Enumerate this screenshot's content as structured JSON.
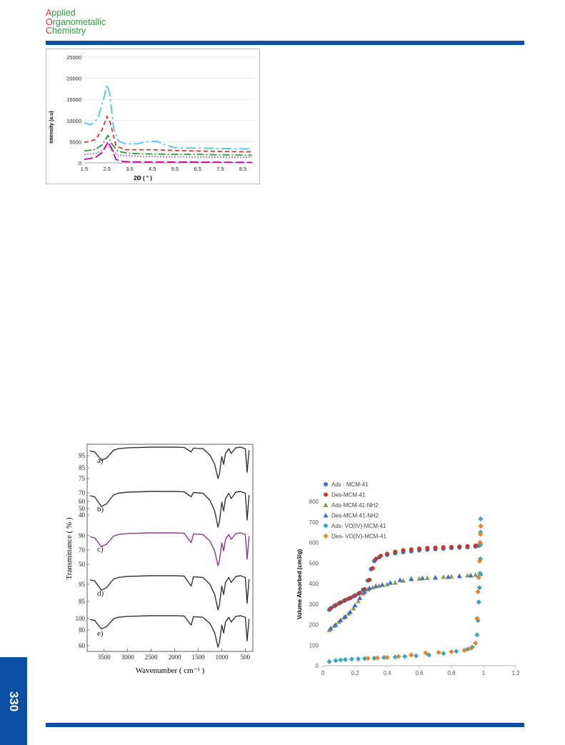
{
  "header": {
    "journal_lines": [
      {
        "initial": "A",
        "rest": "pplied"
      },
      {
        "initial": "O",
        "rest": "rganometallic"
      },
      {
        "initial": "C",
        "rest": "hemistry"
      }
    ]
  },
  "page_number": "330",
  "colors": {
    "brand_blue": "#0b4fa3",
    "journal_red": "#e0342b",
    "journal_green": "#2a9d3c"
  },
  "chart_data": [
    {
      "type": "line",
      "title": "",
      "xlabel": "2Θ ( ° )",
      "ylabel": "Intensity (a.u)",
      "xlim": [
        1.5,
        9
      ],
      "ylim": [
        0,
        25000
      ],
      "x_ticks": [
        "1.5",
        "2.5",
        "3.5",
        "4.5",
        "5.5",
        "6.5",
        "7.5",
        "8.5"
      ],
      "y_ticks": [
        "0",
        "5000",
        "10000",
        "15000",
        "20000",
        "25000"
      ],
      "series": [
        {
          "color": "#4cc8f0",
          "dash": "14,4,3,4",
          "points": [
            [
              1.5,
              9500
            ],
            [
              1.8,
              9000
            ],
            [
              2.1,
              10500
            ],
            [
              2.35,
              15000
            ],
            [
              2.5,
              18500
            ],
            [
              2.62,
              16500
            ],
            [
              2.8,
              8000
            ],
            [
              3.0,
              5200
            ],
            [
              3.3,
              4500
            ],
            [
              3.8,
              4500
            ],
            [
              4.3,
              5000
            ],
            [
              4.7,
              5100
            ],
            [
              5.1,
              4200
            ],
            [
              5.5,
              3600
            ],
            [
              6.5,
              3500
            ],
            [
              7.5,
              3400
            ],
            [
              8.9,
              3300
            ]
          ]
        },
        {
          "color": "#e0322e",
          "dash": "6,4",
          "points": [
            [
              1.5,
              4800
            ],
            [
              2.0,
              5500
            ],
            [
              2.3,
              8000
            ],
            [
              2.5,
              11000
            ],
            [
              2.65,
              9500
            ],
            [
              2.9,
              4000
            ],
            [
              3.3,
              3100
            ],
            [
              4.5,
              3100
            ],
            [
              5.5,
              2900
            ],
            [
              6.5,
              2800
            ],
            [
              7.5,
              2700
            ],
            [
              8.9,
              2600
            ]
          ]
        },
        {
          "color": "#2f9a3a",
          "dash": "10,3,2,3",
          "points": [
            [
              1.5,
              2800
            ],
            [
              2.0,
              3200
            ],
            [
              2.3,
              4300
            ],
            [
              2.55,
              6500
            ],
            [
              2.7,
              4600
            ],
            [
              3.0,
              2700
            ],
            [
              3.5,
              2200
            ],
            [
              4.5,
              2100
            ],
            [
              5.5,
              2000
            ],
            [
              6.5,
              2000
            ],
            [
              7.5,
              1900
            ],
            [
              8.9,
              1800
            ]
          ]
        },
        {
          "color": "#9a7fb8",
          "dash": "2,2",
          "points": [
            [
              1.5,
              2000
            ],
            [
              2.0,
              2200
            ],
            [
              2.3,
              3000
            ],
            [
              2.55,
              4200
            ],
            [
              2.75,
              2800
            ],
            [
              3.0,
              1800
            ],
            [
              4.0,
              1500
            ],
            [
              5.5,
              1400
            ],
            [
              6.5,
              1350
            ],
            [
              8.9,
              1300
            ]
          ]
        },
        {
          "color": "#c400a8",
          "dash": "12,4",
          "points": [
            [
              1.5,
              800
            ],
            [
              2.0,
              1300
            ],
            [
              2.3,
              2500
            ],
            [
              2.55,
              5000
            ],
            [
              2.7,
              3500
            ],
            [
              2.9,
              800
            ],
            [
              3.2,
              300
            ],
            [
              4.0,
              200
            ],
            [
              5.5,
              200
            ],
            [
              7.5,
              150
            ],
            [
              8.9,
              100
            ]
          ]
        }
      ]
    },
    {
      "type": "line",
      "title": "",
      "xlabel": "Wavenumber ( cm⁻¹ )",
      "ylabel": "Transmittance ( % )",
      "x_ticks": [
        "3500",
        "3000",
        "2500",
        "2000",
        "1500",
        "1000",
        "500"
      ],
      "panels": [
        {
          "label": "a)",
          "ticks": [
            "95",
            "85",
            "75"
          ],
          "color": "#333333"
        },
        {
          "label": "b)",
          "ticks": [
            "70",
            "60",
            "50",
            "40"
          ],
          "color": "#333333"
        },
        {
          "label": "c)",
          "ticks": [
            "90",
            "70",
            "50"
          ],
          "color": "#8a3a8a"
        },
        {
          "label": "d)",
          "ticks": [
            "95",
            "85"
          ],
          "color": "#333333"
        },
        {
          "label": "e)",
          "ticks": [
            "100",
            "80",
            "60"
          ],
          "color": "#333333"
        }
      ]
    },
    {
      "type": "scatter",
      "title": "",
      "xlabel": "",
      "ylabel": "Volume Absorbed (cm3/g)",
      "xlim": [
        0,
        1.2
      ],
      "ylim": [
        0,
        800
      ],
      "x_ticks": [
        "0",
        "0.2",
        "0.4",
        "0.6",
        "0.8",
        "1",
        "1.2"
      ],
      "y_ticks": [
        "0",
        "100",
        "200",
        "300",
        "400",
        "500",
        "600",
        "700",
        "800"
      ],
      "legend_position": "top-left",
      "series": [
        {
          "name": "Ads - MCM-41",
          "color": "#3d6fbf",
          "marker": "circle",
          "points": [
            [
              0.04,
              272
            ],
            [
              0.07,
              290
            ],
            [
              0.1,
              303
            ],
            [
              0.13,
              315
            ],
            [
              0.16,
              326
            ],
            [
              0.19,
              337
            ],
            [
              0.22,
              350
            ],
            [
              0.25,
              370
            ],
            [
              0.28,
              415
            ],
            [
              0.3,
              470
            ],
            [
              0.32,
              510
            ],
            [
              0.35,
              528
            ],
            [
              0.4,
              540
            ],
            [
              0.45,
              548
            ],
            [
              0.5,
              553
            ],
            [
              0.55,
              557
            ],
            [
              0.6,
              562
            ],
            [
              0.65,
              565
            ],
            [
              0.7,
              568
            ],
            [
              0.75,
              570
            ],
            [
              0.8,
              573
            ],
            [
              0.85,
              575
            ],
            [
              0.9,
              577
            ],
            [
              0.95,
              580
            ],
            [
              0.97,
              585
            ],
            [
              0.98,
              590
            ]
          ]
        },
        {
          "name": "Des-MCM-41",
          "color": "#c0392b",
          "marker": "circle",
          "points": [
            [
              0.98,
              590
            ],
            [
              0.95,
              585
            ],
            [
              0.9,
              582
            ],
            [
              0.85,
              580
            ],
            [
              0.8,
              578
            ],
            [
              0.75,
              577
            ],
            [
              0.7,
              575
            ],
            [
              0.65,
              573
            ],
            [
              0.6,
              570
            ],
            [
              0.55,
              566
            ],
            [
              0.5,
              562
            ],
            [
              0.45,
              555
            ],
            [
              0.4,
              545
            ],
            [
              0.36,
              535
            ],
            [
              0.33,
              520
            ],
            [
              0.31,
              475
            ],
            [
              0.29,
              418
            ],
            [
              0.26,
              372
            ],
            [
              0.23,
              355
            ],
            [
              0.2,
              342
            ],
            [
              0.17,
              330
            ],
            [
              0.14,
              320
            ],
            [
              0.11,
              308
            ],
            [
              0.08,
              295
            ],
            [
              0.05,
              280
            ]
          ]
        },
        {
          "name": "Ads-MCM-41-NH2",
          "color": "#8f9a55",
          "marker": "triangle",
          "points": [
            [
              0.04,
              175
            ],
            [
              0.07,
              195
            ],
            [
              0.1,
              215
            ],
            [
              0.13,
              235
            ],
            [
              0.16,
              255
            ],
            [
              0.19,
              280
            ],
            [
              0.22,
              315
            ],
            [
              0.25,
              352
            ],
            [
              0.28,
              372
            ],
            [
              0.31,
              382
            ],
            [
              0.35,
              390
            ],
            [
              0.4,
              397
            ],
            [
              0.45,
              405
            ],
            [
              0.5,
              415
            ],
            [
              0.55,
              422
            ],
            [
              0.6,
              425
            ],
            [
              0.65,
              428
            ],
            [
              0.7,
              430
            ],
            [
              0.75,
              433
            ],
            [
              0.8,
              435
            ],
            [
              0.85,
              437
            ],
            [
              0.9,
              440
            ],
            [
              0.95,
              443
            ],
            [
              0.98,
              450
            ]
          ]
        },
        {
          "name": "Des-MCM-41-NH2",
          "color": "#3d6fbf",
          "marker": "triangle",
          "points": [
            [
              0.98,
              448
            ],
            [
              0.92,
              440
            ],
            [
              0.85,
              437
            ],
            [
              0.78,
              433
            ],
            [
              0.7,
              430
            ],
            [
              0.62,
              427
            ],
            [
              0.55,
              424
            ],
            [
              0.48,
              418
            ],
            [
              0.42,
              405
            ],
            [
              0.37,
              395
            ],
            [
              0.33,
              388
            ],
            [
              0.29,
              378
            ],
            [
              0.26,
              360
            ],
            [
              0.23,
              330
            ],
            [
              0.2,
              295
            ],
            [
              0.17,
              262
            ],
            [
              0.14,
              240
            ],
            [
              0.11,
              222
            ],
            [
              0.08,
              200
            ],
            [
              0.05,
              182
            ]
          ]
        },
        {
          "name": "Ads- VO(IV)-MCM-41",
          "color": "#3aa8b8",
          "marker": "diamond",
          "points": [
            [
              0.04,
              20
            ],
            [
              0.08,
              25
            ],
            [
              0.11,
              28
            ],
            [
              0.14,
              30
            ],
            [
              0.18,
              32
            ],
            [
              0.22,
              33
            ],
            [
              0.26,
              35
            ],
            [
              0.32,
              37
            ],
            [
              0.38,
              40
            ],
            [
              0.45,
              42
            ],
            [
              0.51,
              45
            ],
            [
              0.58,
              48
            ],
            [
              0.66,
              52
            ],
            [
              0.75,
              60
            ],
            [
              0.83,
              70
            ],
            [
              0.9,
              80
            ],
            [
              0.93,
              90
            ],
            [
              0.96,
              150
            ],
            [
              0.965,
              220
            ],
            [
              0.97,
              310
            ],
            [
              0.975,
              380
            ],
            [
              0.978,
              450
            ],
            [
              0.98,
              520
            ],
            [
              0.98,
              590
            ],
            [
              0.981,
              650
            ],
            [
              0.982,
              715
            ]
          ]
        },
        {
          "name": "Des- VO(IV)-MCM-41",
          "color": "#e8822a",
          "marker": "diamond",
          "points": [
            [
              0.982,
              680
            ],
            [
              0.98,
              640
            ],
            [
              0.978,
              600
            ],
            [
              0.975,
              510
            ],
            [
              0.97,
              430
            ],
            [
              0.965,
              360
            ],
            [
              0.96,
              230
            ],
            [
              0.95,
              110
            ],
            [
              0.92,
              85
            ],
            [
              0.88,
              75
            ],
            [
              0.8,
              68
            ],
            [
              0.72,
              65
            ],
            [
              0.64,
              62
            ],
            [
              0.55,
              52
            ],
            [
              0.47,
              45
            ],
            [
              0.4,
              40
            ],
            [
              0.34,
              38
            ],
            [
              0.28,
              36
            ]
          ]
        }
      ]
    }
  ]
}
